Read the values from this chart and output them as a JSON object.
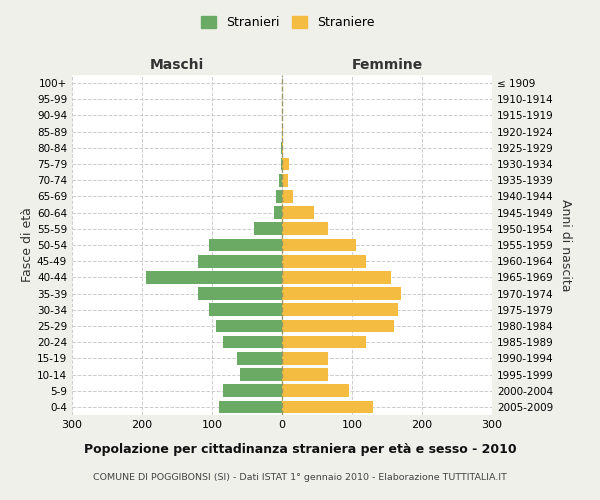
{
  "age_groups": [
    "0-4",
    "5-9",
    "10-14",
    "15-19",
    "20-24",
    "25-29",
    "30-34",
    "35-39",
    "40-44",
    "45-49",
    "50-54",
    "55-59",
    "60-64",
    "65-69",
    "70-74",
    "75-79",
    "80-84",
    "85-89",
    "90-94",
    "95-99",
    "100+"
  ],
  "birth_years": [
    "2005-2009",
    "2000-2004",
    "1995-1999",
    "1990-1994",
    "1985-1989",
    "1980-1984",
    "1975-1979",
    "1970-1974",
    "1965-1969",
    "1960-1964",
    "1955-1959",
    "1950-1954",
    "1945-1949",
    "1940-1944",
    "1935-1939",
    "1930-1934",
    "1925-1929",
    "1920-1924",
    "1915-1919",
    "1910-1914",
    "≤ 1909"
  ],
  "maschi": [
    90,
    85,
    60,
    65,
    85,
    95,
    105,
    120,
    195,
    120,
    105,
    40,
    12,
    8,
    5,
    2,
    1,
    0,
    0,
    0,
    0
  ],
  "femmine": [
    130,
    95,
    65,
    65,
    120,
    160,
    165,
    170,
    155,
    120,
    105,
    65,
    45,
    15,
    8,
    10,
    2,
    1,
    0,
    0,
    0
  ],
  "maschi_color": "#6aaa64",
  "femmine_color": "#f5bc42",
  "background_color": "#f0f0eb",
  "plot_bg_color": "#ffffff",
  "grid_color": "#cccccc",
  "title": "Popolazione per cittadinanza straniera per età e sesso - 2010",
  "subtitle": "COMUNE DI POGGIBONSI (SI) - Dati ISTAT 1° gennaio 2010 - Elaborazione TUTTITALIA.IT",
  "xlabel_left": "Maschi",
  "xlabel_right": "Femmine",
  "ylabel_left": "Fasce di età",
  "ylabel_right": "Anni di nascita",
  "legend_maschi": "Stranieri",
  "legend_femmine": "Straniere",
  "xlim": 300
}
